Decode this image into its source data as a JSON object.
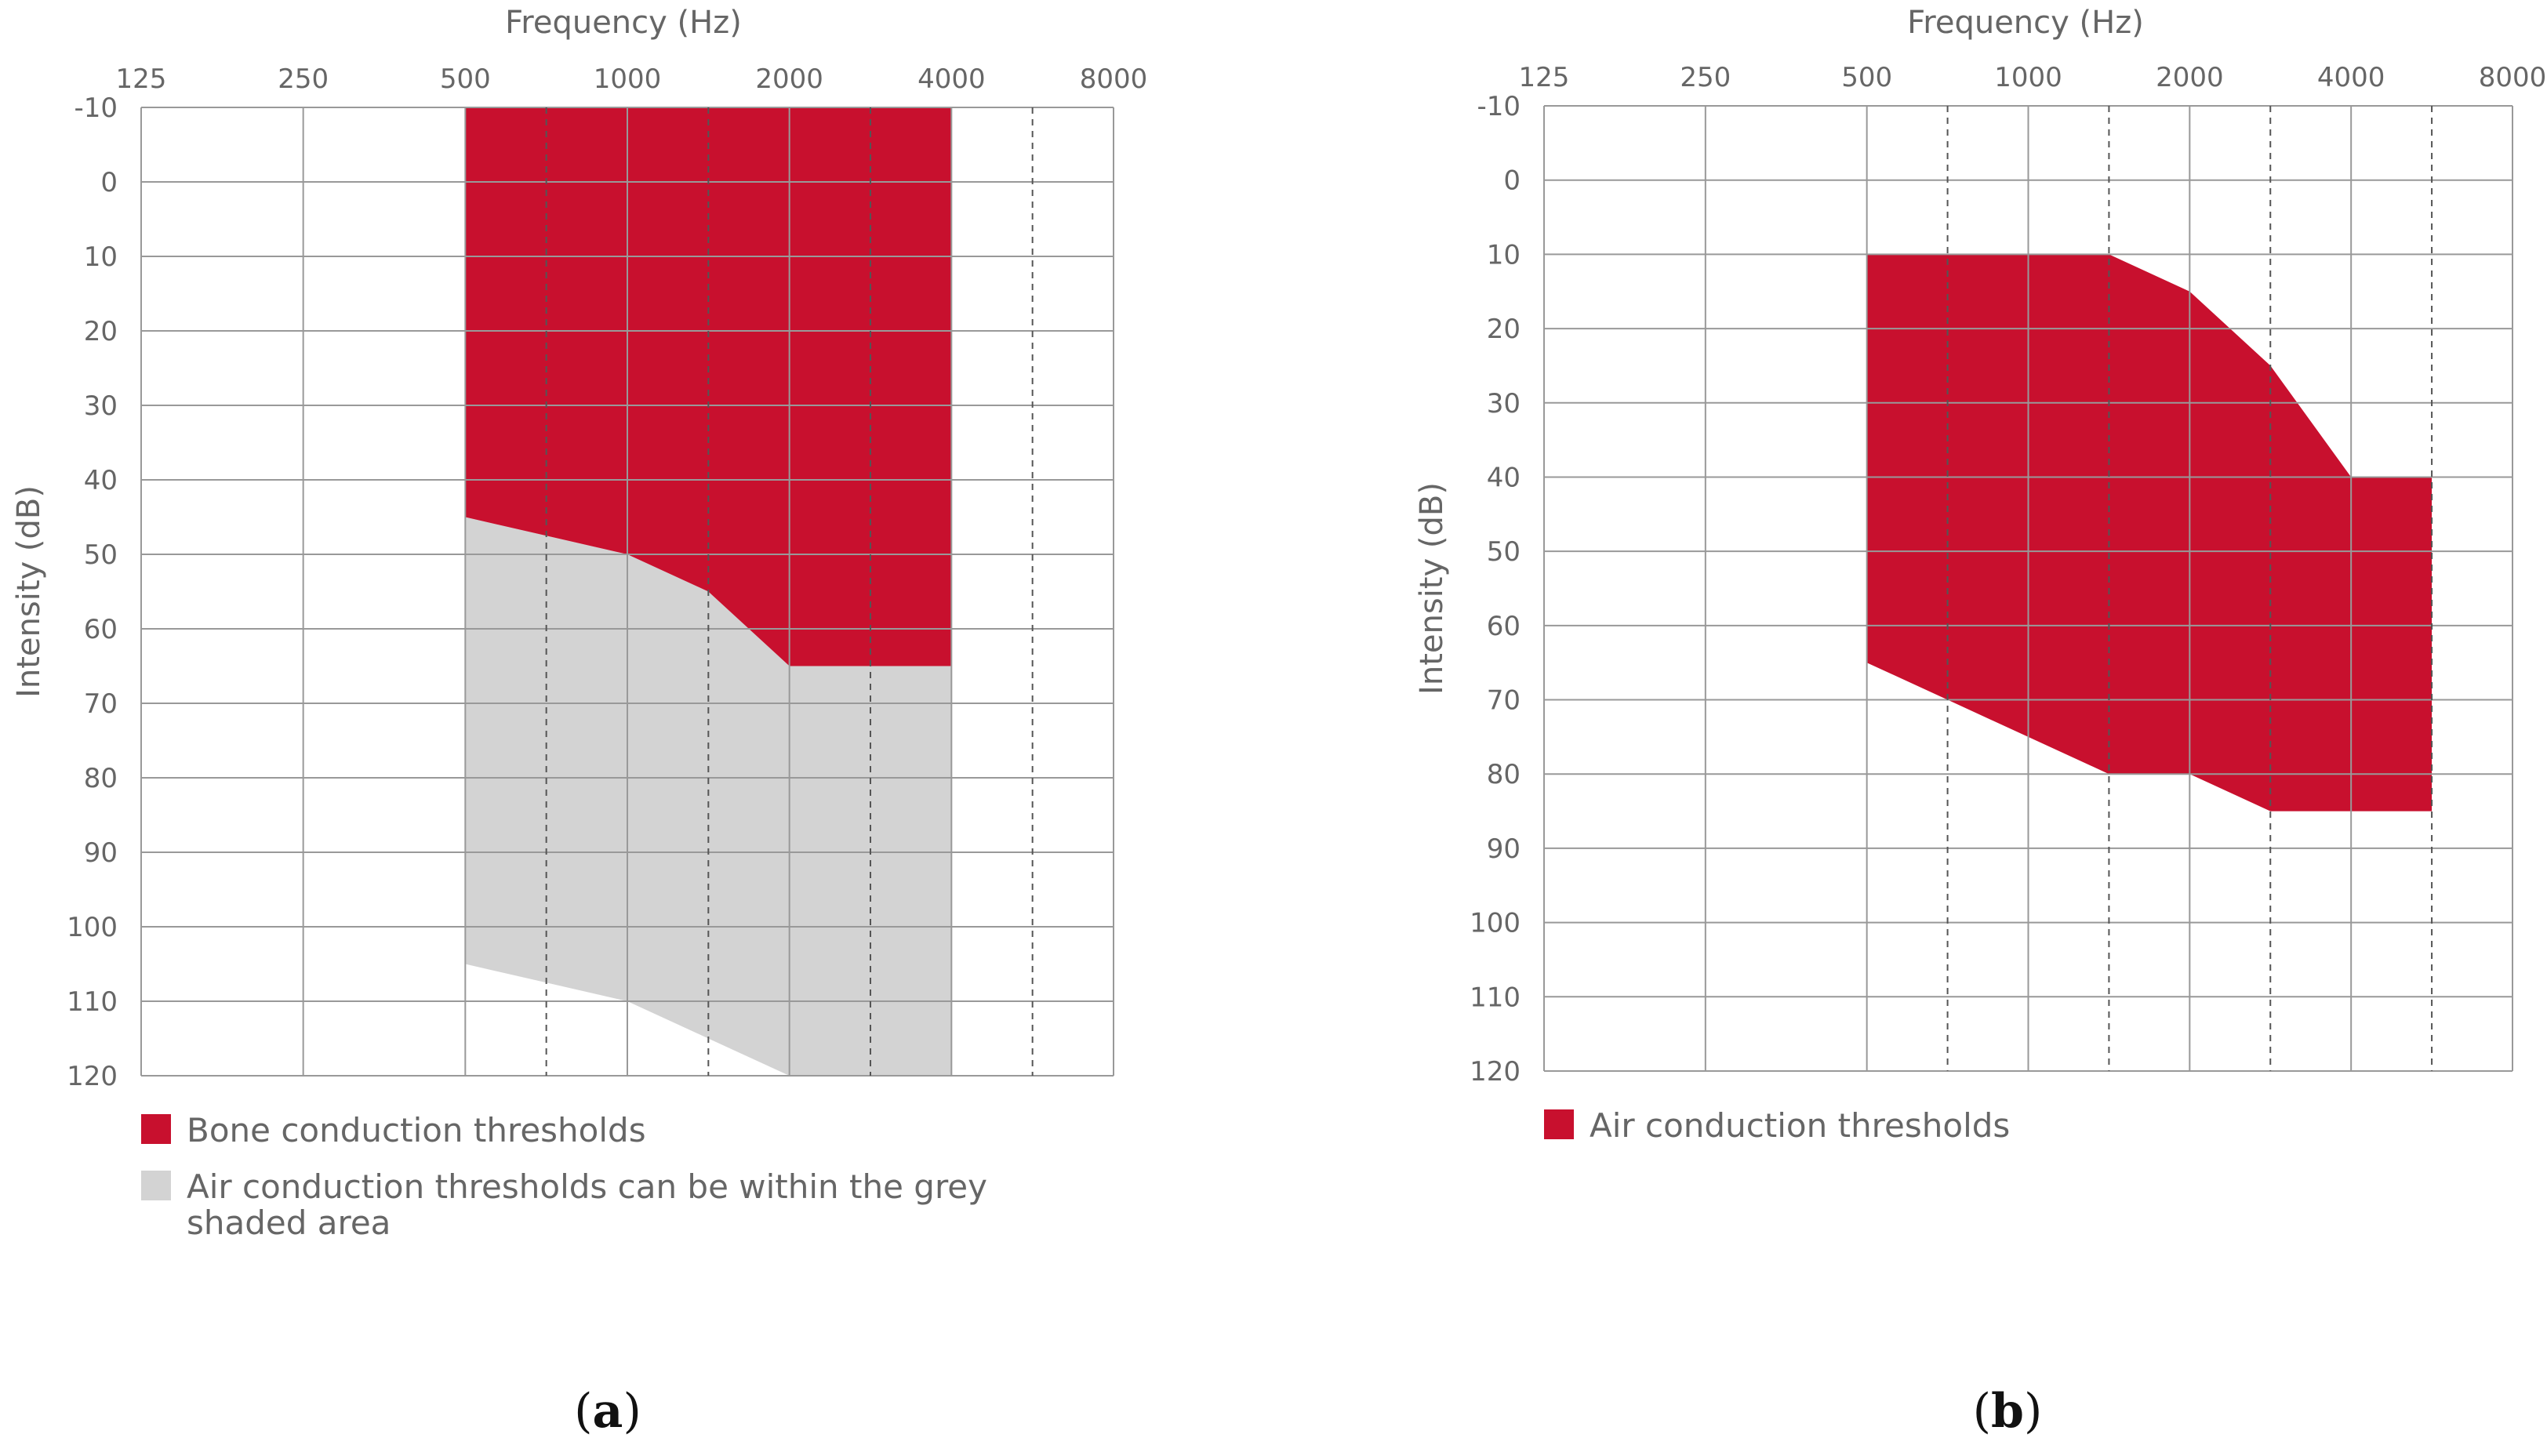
{
  "colors": {
    "red": "#C8102E",
    "grey": "#D3D3D3",
    "grid": "#999999",
    "text": "#666666"
  },
  "chart_data": [
    {
      "type": "area",
      "panel_label_parts": [
        "(",
        "a",
        ")"
      ],
      "xlabel": "Frequency (Hz)",
      "ylabel": "Intensity (dB)",
      "x_ticks": [
        "125",
        "250",
        "500",
        "1000",
        "2000",
        "4000",
        "8000"
      ],
      "y_ticks": [
        "-10",
        "0",
        "10",
        "20",
        "30",
        "40",
        "50",
        "60",
        "70",
        "80",
        "90",
        "100",
        "110",
        "120"
      ],
      "ylim": [
        -10,
        120
      ],
      "x_unit": "octave index (0 = 125 Hz, 1 = 250 Hz, 2 = 500 Hz, 3 = 1000 Hz, 4 = 2000 Hz, 5 = 4000 Hz, 6 = 8000 Hz)",
      "half_octave_dashed": [
        2.5,
        3.5,
        4.5,
        5.5
      ],
      "series": [
        {
          "name": "Air conduction thresholds can be within the grey shaded area",
          "color": "grey",
          "upper": [
            [
              2,
              45
            ],
            [
              2.5,
              47.5
            ],
            [
              3,
              50
            ],
            [
              3.5,
              55
            ],
            [
              4,
              65
            ],
            [
              5,
              65
            ]
          ],
          "lower": [
            [
              2,
              105
            ],
            [
              2.5,
              107.5
            ],
            [
              3,
              110
            ],
            [
              3.5,
              115
            ],
            [
              4,
              120
            ],
            [
              5,
              120
            ]
          ]
        },
        {
          "name": "Bone conduction thresholds",
          "color": "red",
          "upper": [
            [
              2,
              -10
            ],
            [
              5,
              -10
            ]
          ],
          "lower": [
            [
              2,
              45
            ],
            [
              2.5,
              47.5
            ],
            [
              3,
              50
            ],
            [
              3.5,
              55
            ],
            [
              4,
              65
            ],
            [
              5,
              65
            ]
          ]
        }
      ],
      "legend": [
        {
          "color": "red",
          "lines": [
            "Bone conduction thresholds"
          ]
        },
        {
          "color": "grey",
          "lines": [
            "Air conduction thresholds can be within the grey",
            "shaded area"
          ]
        }
      ]
    },
    {
      "type": "area",
      "panel_label_parts": [
        "(",
        "b",
        ")"
      ],
      "xlabel": "Frequency (Hz)",
      "ylabel": "Intensity (dB)",
      "x_ticks": [
        "125",
        "250",
        "500",
        "1000",
        "2000",
        "4000",
        "8000"
      ],
      "y_ticks": [
        "-10",
        "0",
        "10",
        "20",
        "30",
        "40",
        "50",
        "60",
        "70",
        "80",
        "90",
        "100",
        "110",
        "120"
      ],
      "ylim": [
        -10,
        120
      ],
      "x_unit": "octave index (0 = 125 Hz, 1 = 250 Hz, 2 = 500 Hz, 3 = 1000 Hz, 4 = 2000 Hz, 5 = 4000 Hz, 6 = 8000 Hz)",
      "half_octave_dashed": [
        2.5,
        3.5,
        4.5,
        5.5
      ],
      "series": [
        {
          "name": "Air conduction thresholds",
          "color": "red",
          "upper": [
            [
              2,
              10
            ],
            [
              3.5,
              10
            ],
            [
              4,
              15
            ],
            [
              4.5,
              25
            ],
            [
              5,
              40
            ],
            [
              5.5,
              40
            ]
          ],
          "lower": [
            [
              2,
              65
            ],
            [
              2.5,
              70
            ],
            [
              3,
              75
            ],
            [
              3.5,
              80
            ],
            [
              4,
              80
            ],
            [
              4.5,
              85
            ],
            [
              5.5,
              85
            ]
          ]
        }
      ],
      "legend": [
        {
          "color": "red",
          "lines": [
            "Air conduction thresholds"
          ]
        }
      ]
    }
  ]
}
